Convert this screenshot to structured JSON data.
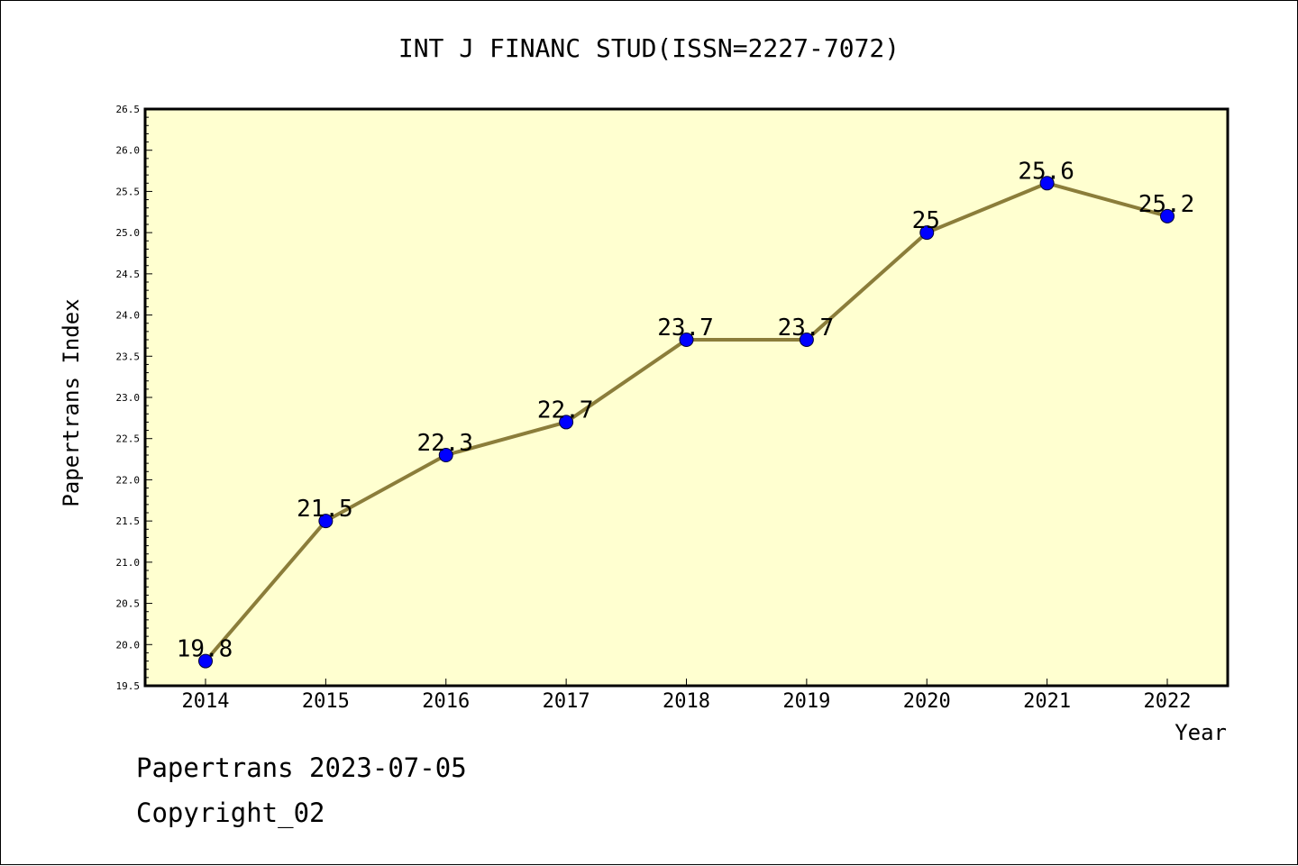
{
  "chart_data": {
    "type": "line",
    "title": "INT J FINANC STUD(ISSN=2227-7072)",
    "xlabel": "Year",
    "ylabel": "Papertrans Index",
    "categories": [
      "2014",
      "2015",
      "2016",
      "2017",
      "2018",
      "2019",
      "2020",
      "2021",
      "2022"
    ],
    "series": [
      {
        "values": [
          19.8,
          21.5,
          22.3,
          22.7,
          23.7,
          23.7,
          25,
          25.6,
          25.2
        ],
        "labels": [
          "19.8",
          "21.5",
          "22.3",
          "22.7",
          "23.7",
          "23.7",
          "25",
          "25.6",
          "25.2"
        ]
      }
    ],
    "ylim": [
      19.5,
      26.5
    ],
    "yticks": [
      "19.5",
      "20.0",
      "20.5",
      "21.0",
      "21.5",
      "22.0",
      "22.5",
      "23.0",
      "23.5",
      "24.0",
      "24.5",
      "25.0",
      "25.5",
      "26.0",
      "26.5"
    ],
    "grid": false,
    "colors": {
      "line": "#8b7d3a",
      "marker": "#0000ff",
      "plot_background": "#ffffd0"
    }
  },
  "footer": {
    "source": "Papertrans 2023-07-05",
    "copyright": "Copyright_02"
  }
}
